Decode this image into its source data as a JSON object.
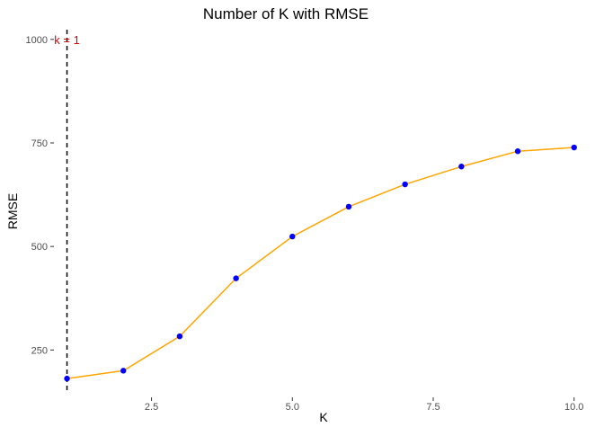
{
  "chart_data": {
    "type": "line",
    "title": "Number of K with RMSE",
    "xlabel": "K",
    "ylabel": "RMSE",
    "x": [
      1,
      2,
      3,
      4,
      5,
      6,
      7,
      8,
      9,
      10
    ],
    "series": [
      {
        "values": [
          181,
          200,
          283,
          423,
          524,
          596,
          650,
          693,
          730,
          739
        ],
        "line_color": "#FFA500",
        "point_color": "#0000FF"
      }
    ],
    "xlim": [
      0.8,
      10.1
    ],
    "ylim": [
      140,
      1030
    ],
    "x_ticks": [
      2.5,
      5.0,
      7.5,
      10.0
    ],
    "x_tick_labels": [
      "2.5",
      "5.0",
      "7.5",
      "10.0"
    ],
    "y_ticks": [
      250,
      500,
      750,
      1000
    ],
    "y_tick_labels": [
      "250",
      "500",
      "750",
      "1000"
    ],
    "grid": false,
    "reference_line": {
      "x": 1,
      "style": "dashed",
      "color": "#000000",
      "label": "k = 1",
      "label_color": "#E00000",
      "label_y": 1000
    }
  }
}
